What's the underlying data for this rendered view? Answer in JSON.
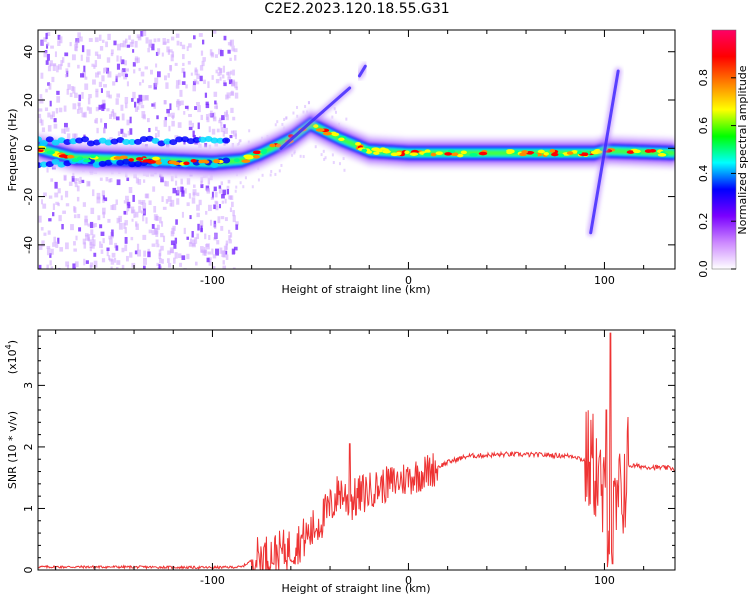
{
  "title": "C2E2.2023.120.18.55.G31",
  "chart_data": [
    {
      "type": "heatmap",
      "xlabel": "Height of straight line (km)",
      "ylabel": "Frequency (Hz)",
      "xlim": [
        -189,
        136
      ],
      "ylim": [
        -50,
        49
      ],
      "x_ticks": [
        -100,
        0,
        100
      ],
      "y_ticks": [
        -40,
        -20,
        0,
        20,
        40
      ],
      "colorbar": {
        "label": "Normalized spectral amplitude",
        "range": [
          0,
          1
        ],
        "ticks": [
          "0.0",
          "0.2",
          "0.4",
          "0.6",
          "0.8"
        ],
        "colors": [
          "#ffffff",
          "#cc88ff",
          "#7a00ff",
          "#0000ff",
          "#00ffff",
          "#00ff00",
          "#ffff00",
          "#ff8000",
          "#ff0000",
          "#ff0066"
        ]
      },
      "ridge": [
        {
          "x": -189,
          "y": 0
        },
        {
          "x": -170,
          "y": -4
        },
        {
          "x": -130,
          "y": -5
        },
        {
          "x": -100,
          "y": -6
        },
        {
          "x": -85,
          "y": -5
        },
        {
          "x": -75,
          "y": -2
        },
        {
          "x": -60,
          "y": 4
        },
        {
          "x": -50,
          "y": 10
        },
        {
          "x": -35,
          "y": 4
        },
        {
          "x": -20,
          "y": -1
        },
        {
          "x": 0,
          "y": -2
        },
        {
          "x": 50,
          "y": -2
        },
        {
          "x": 95,
          "y": -2
        },
        {
          "x": 100,
          "y": -1
        },
        {
          "x": 136,
          "y": -2
        }
      ],
      "branch_lines": [
        {
          "from": [
            -65,
            0
          ],
          "to": [
            -30,
            25
          ]
        },
        {
          "from": [
            -25,
            30
          ],
          "to": [
            -22,
            34
          ]
        },
        {
          "from": [
            93,
            -35
          ],
          "to": [
            107,
            32
          ]
        }
      ]
    },
    {
      "type": "line",
      "xlabel": "Height of straight line (km)",
      "ylabel": "SNR (10 * v/v)",
      "y_multiplier": "(x10",
      "y_multiplier_exp": "4",
      "y_multiplier_close": ")",
      "xlim": [
        -189,
        136
      ],
      "ylim": [
        0,
        3.9
      ],
      "x_ticks": [
        -100,
        0,
        100
      ],
      "y_ticks": [
        0,
        1,
        2,
        3
      ],
      "color": "#ee3333",
      "envelope": [
        [
          -189,
          0.05
        ],
        [
          -150,
          0.05
        ],
        [
          -100,
          0.04
        ],
        [
          -85,
          0.05
        ],
        [
          -78,
          0.2
        ],
        [
          -70,
          0.25
        ],
        [
          -60,
          0.35
        ],
        [
          -50,
          0.6
        ],
        [
          -40,
          1.0
        ],
        [
          -35,
          1.3
        ],
        [
          -30,
          1.1
        ],
        [
          -20,
          1.3
        ],
        [
          -10,
          1.4
        ],
        [
          0,
          1.5
        ],
        [
          10,
          1.6
        ],
        [
          20,
          1.75
        ],
        [
          30,
          1.85
        ],
        [
          50,
          1.88
        ],
        [
          70,
          1.87
        ],
        [
          85,
          1.85
        ],
        [
          95,
          1.7
        ],
        [
          100,
          1.0
        ],
        [
          103,
          0.8
        ],
        [
          108,
          1.1
        ],
        [
          112,
          1.7
        ],
        [
          120,
          1.68
        ],
        [
          136,
          1.65
        ]
      ],
      "spikes": [
        [
          -30,
          2.05
        ],
        [
          101,
          2.6
        ],
        [
          103,
          3.85
        ],
        [
          104,
          0.1
        ]
      ]
    }
  ]
}
